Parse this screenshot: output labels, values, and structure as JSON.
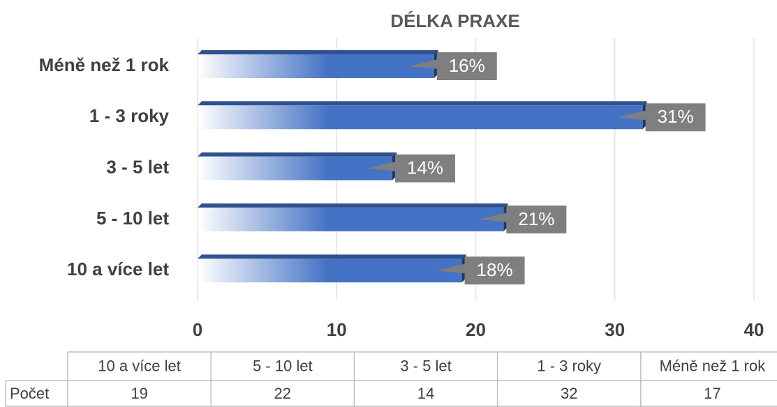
{
  "chart_data": {
    "type": "bar",
    "orientation": "horizontal",
    "title": "DÉLKA PRAXE",
    "categories": [
      "10 a více let",
      "5 - 10 let",
      "3 - 5 let",
      "1 - 3 roky",
      "Méně než 1 rok"
    ],
    "series": [
      {
        "name": "Počet",
        "color": "#4472c4",
        "values": [
          19,
          22,
          14,
          32,
          17
        ],
        "value_labels": [
          "18%",
          "21%",
          "14%",
          "31%",
          "16%"
        ]
      }
    ],
    "xlim": [
      0,
      40
    ],
    "xticks": [
      0,
      10,
      20,
      30,
      40
    ],
    "grid": true,
    "data_table": true
  }
}
